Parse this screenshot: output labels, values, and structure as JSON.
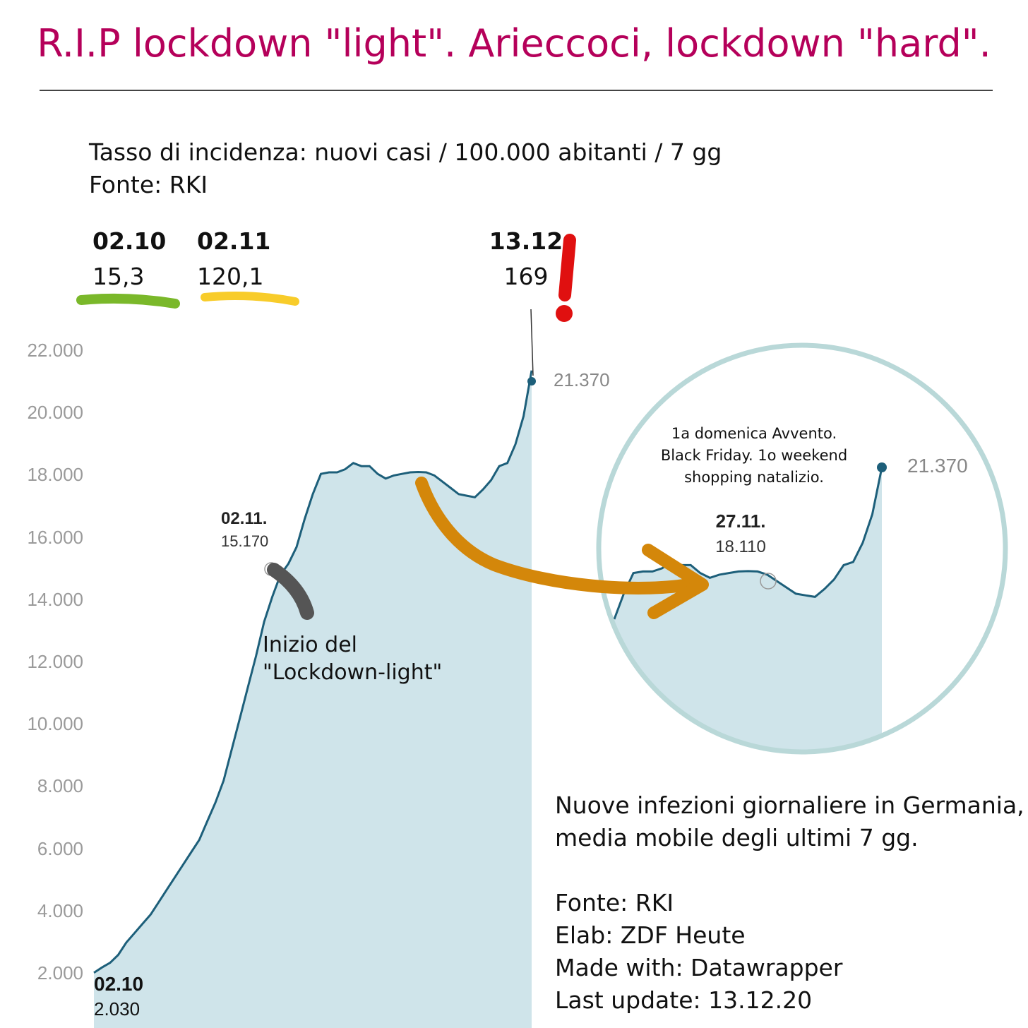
{
  "header": {
    "title": "R.I.P lockdown \"light\". Arieccoci, lockdown \"hard\".",
    "subtitle_line1": "Tasso di incidenza: nuovi casi / 100.000 abitanti / 7 gg",
    "subtitle_line2": "Fonte: RKI"
  },
  "incidence": [
    {
      "date": "02.10",
      "value": "15,3",
      "marker_color": "#7ab82a"
    },
    {
      "date": "02.11",
      "value": "120,1",
      "marker_color": "#f8cc2a"
    },
    {
      "date": "13.12",
      "value": "169",
      "marker_color": "#e01010",
      "mark": "!"
    }
  ],
  "annotations": {
    "start_date": "02.10",
    "start_value": "2.030",
    "lockdown_date": "02.11.",
    "lockdown_value": "15.170",
    "lockdown_text_line1": "Inizio del",
    "lockdown_text_line2": "\"Lockdown-light\"",
    "end_value": "21.370",
    "zoom_note_line1": "1a domenica Avvento.",
    "zoom_note_line2": "Black Friday. 1o weekend",
    "zoom_note_line3": "shopping natalizio.",
    "zoom_date": "27.11.",
    "zoom_value": "18.110",
    "zoom_end_value": "21.370"
  },
  "note": {
    "line1": "Nuove infezioni giornaliere in Germania,",
    "line2": "media mobile degli ultimi 7 gg.",
    "line3": "Fonte: RKI",
    "line4": "Elab: ZDF Heute",
    "line5": "Made with: Datawrapper",
    "line6": "Last update: 13.12.20"
  },
  "colors": {
    "title": "#b5005a",
    "line": "#1d5f7a",
    "area": "#cfe4ea",
    "arrow": "#d4870a",
    "marker_gray": "#555555"
  },
  "chart_data": {
    "type": "area",
    "title": "",
    "xlabel": "",
    "ylabel": "",
    "ylim": [
      0,
      22000
    ],
    "yticks": [
      "2.000",
      "4.000",
      "6.000",
      "8.000",
      "10.000",
      "12.000",
      "14.000",
      "16.000",
      "18.000",
      "20.000",
      "22.000"
    ],
    "ytick_values": [
      2000,
      4000,
      6000,
      8000,
      10000,
      12000,
      14000,
      16000,
      18000,
      20000,
      22000
    ],
    "x_start": "02.10",
    "x_end": "13.12",
    "series": [
      {
        "values": [
          2030,
          2200,
          2350,
          2600,
          3000,
          3300,
          3600,
          3900,
          4300,
          4700,
          5100,
          5500,
          5900,
          6300,
          6900,
          7500,
          8200,
          9200,
          10200,
          11200,
          12200,
          13300,
          14100,
          14800,
          15170,
          15700,
          16600,
          17400,
          18050,
          18100,
          18100,
          18200,
          18400,
          18300,
          18300,
          18050,
          17900,
          18000,
          18050,
          18100,
          18110,
          18100,
          18000,
          17800,
          17600,
          17400,
          17350,
          17300,
          17550,
          17850,
          18300,
          18400,
          19000,
          19900,
          21370
        ]
      }
    ],
    "zoom_inset": {
      "values": [
        16600,
        17400,
        18050,
        18100,
        18100,
        18200,
        18400,
        18300,
        18300,
        18050,
        17900,
        18000,
        18050,
        18100,
        18110,
        18100,
        18000,
        17800,
        17600,
        17400,
        17350,
        17300,
        17550,
        17850,
        18300,
        18400,
        19000,
        19900,
        21370
      ],
      "ylim": [
        15700,
        22000
      ]
    }
  }
}
